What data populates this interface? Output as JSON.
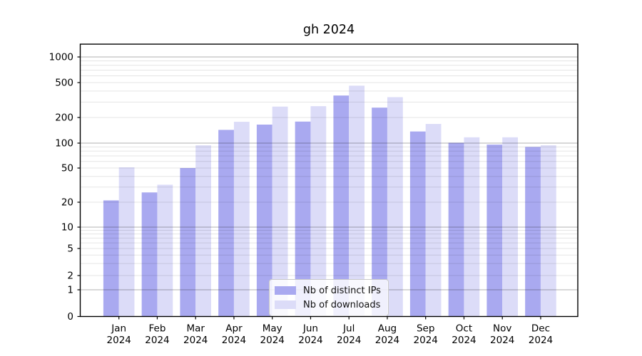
{
  "title": "gh 2024",
  "chart_data": {
    "type": "bar",
    "title": "gh 2024",
    "categories": [
      "Jan",
      "Feb",
      "Mar",
      "Apr",
      "May",
      "Jun",
      "Jul",
      "Aug",
      "Sep",
      "Oct",
      "Nov",
      "Dec"
    ],
    "x_tick_second_line": "2024",
    "series": [
      {
        "name": "Nb of distinct IPs",
        "color": "#a9a9f0",
        "values": [
          21,
          26,
          50,
          143,
          165,
          179,
          356,
          259,
          137,
          101,
          96,
          90
        ]
      },
      {
        "name": "Nb of downloads",
        "color": "#dcdcf8",
        "values": [
          51,
          32,
          94,
          178,
          266,
          269,
          461,
          341,
          168,
          117,
          117,
          94
        ]
      }
    ],
    "y_axis": {
      "scale": "log-like (symlog)",
      "ticks": [
        0,
        1,
        2,
        5,
        10,
        20,
        50,
        100,
        200,
        500,
        1000
      ],
      "range_top": 1400
    },
    "grid": "horizontal, log minor + decade major",
    "legend_position": "lower center"
  }
}
